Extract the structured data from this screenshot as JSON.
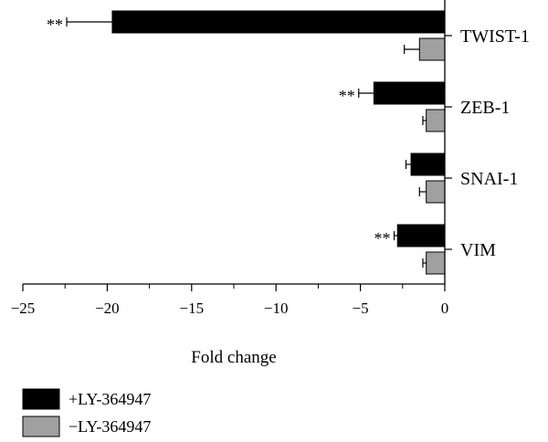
{
  "chart_data": {
    "type": "bar",
    "orientation": "horizontal",
    "categories": [
      "TWIST-1",
      "ZEB-1",
      "SNAI-1",
      "VIM"
    ],
    "series": [
      {
        "name": "+LY-364947",
        "color": "#000000",
        "values": [
          -19.7,
          -4.2,
          -2.0,
          -2.8
        ],
        "errors": [
          2.7,
          0.9,
          0.3,
          0.2
        ],
        "significance": [
          "**",
          "**",
          "",
          "**"
        ]
      },
      {
        "name": "−LY-364947",
        "color": "#a0a0a0",
        "values": [
          -1.5,
          -1.1,
          -1.1,
          -1.1
        ],
        "errors": [
          0.9,
          0.2,
          0.4,
          0.2
        ],
        "significance": [
          "",
          "",
          "",
          ""
        ]
      }
    ],
    "xlabel": "Fold change",
    "xlim": [
      -25,
      0
    ],
    "xticks": [
      -25,
      -20,
      -15,
      -10,
      -5,
      0
    ],
    "xtick_labels": [
      "−25",
      "−20",
      "−15",
      "−10",
      "−5",
      "0"
    ],
    "grid": false,
    "legend_position": "bottom-left"
  }
}
